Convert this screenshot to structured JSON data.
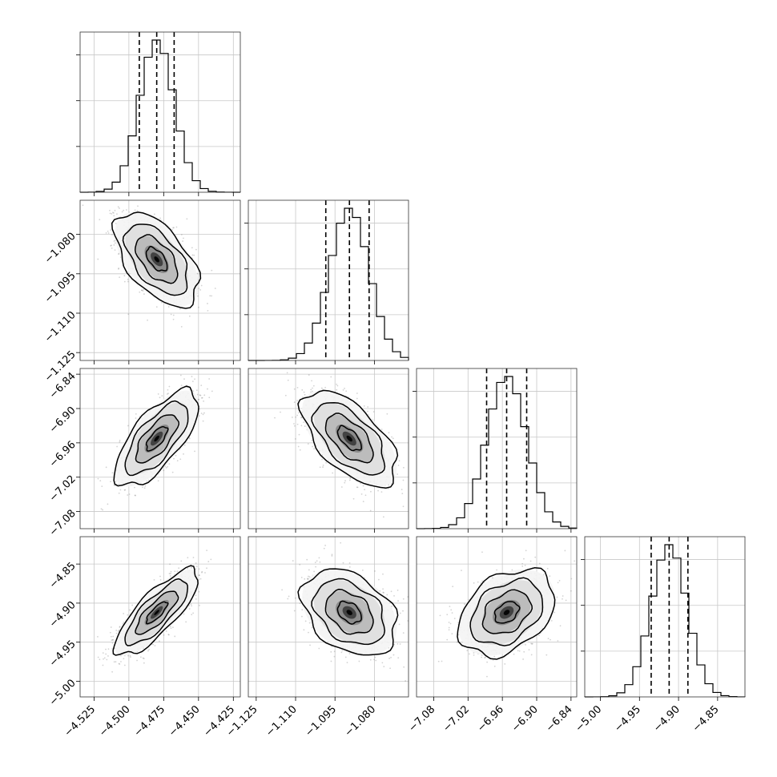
{
  "chart_data": {
    "type": "corner",
    "parameters": [
      {
        "index": 0,
        "range": [
          -4.535,
          -4.42
        ],
        "ticks": [
          -4.525,
          -4.5,
          -4.475,
          -4.45,
          -4.425
        ],
        "tick_labels": [
          "−4.525",
          "−4.500",
          "−4.475",
          "−4.450",
          "−4.425"
        ],
        "quantiles": [
          -4.4925,
          -4.48,
          -4.4675
        ],
        "mean": -4.48,
        "sd": 0.0125
      },
      {
        "index": 1,
        "range": [
          -1.128,
          -1.067
        ],
        "ticks": [
          -1.08,
          -1.095,
          -1.11,
          -1.125
        ],
        "tick_labels": [
          "−1.080",
          "−1.095",
          "−1.110",
          "−1.125"
        ],
        "quantiles": [
          -1.0985,
          -1.0895,
          -1.082
        ],
        "mean": -1.0895,
        "sd": 0.0075
      },
      {
        "index": 2,
        "range": [
          -7.11,
          -6.83
        ],
        "ticks": [
          -6.84,
          -6.9,
          -6.96,
          -7.02,
          -7.08
        ],
        "tick_labels": [
          "−6.84",
          "−6.90",
          "−6.96",
          "−7.02",
          "−7.08"
        ],
        "x_ticks": [
          -7.08,
          -7.02,
          -6.96,
          -6.9,
          -6.84
        ],
        "x_tick_labels": [
          "−7.08",
          "−7.02",
          "−6.96",
          "−6.90",
          "−6.84"
        ],
        "quantiles": [
          -6.9875,
          -6.9525,
          -6.9175
        ],
        "mean": -6.9525,
        "sd": 0.035
      },
      {
        "index": 3,
        "range": [
          -5.02,
          -4.815
        ],
        "ticks": [
          -4.85,
          -4.9,
          -4.95,
          -5.0
        ],
        "tick_labels": [
          "−4.85",
          "−4.90",
          "−4.95",
          "−5.00"
        ],
        "x_ticks": [
          -5.0,
          -4.95,
          -4.9,
          -4.85
        ],
        "x_tick_labels": [
          "−5.00",
          "−4.95",
          "−4.90",
          "−4.85"
        ],
        "quantiles": [
          -4.935,
          -4.912,
          -4.888
        ],
        "mean": -4.912,
        "sd": 0.023
      }
    ],
    "correlations": {
      "1-0": -0.55,
      "2-0": 0.7,
      "2-1": -0.6,
      "3-0": 0.8,
      "3-1": -0.35,
      "3-2": 0.35
    },
    "histogram_bins": 20,
    "contour_levels": 4,
    "quantile_line_style": "dashed",
    "grid": true,
    "point_color": "#808080",
    "line_color": "#000000"
  }
}
